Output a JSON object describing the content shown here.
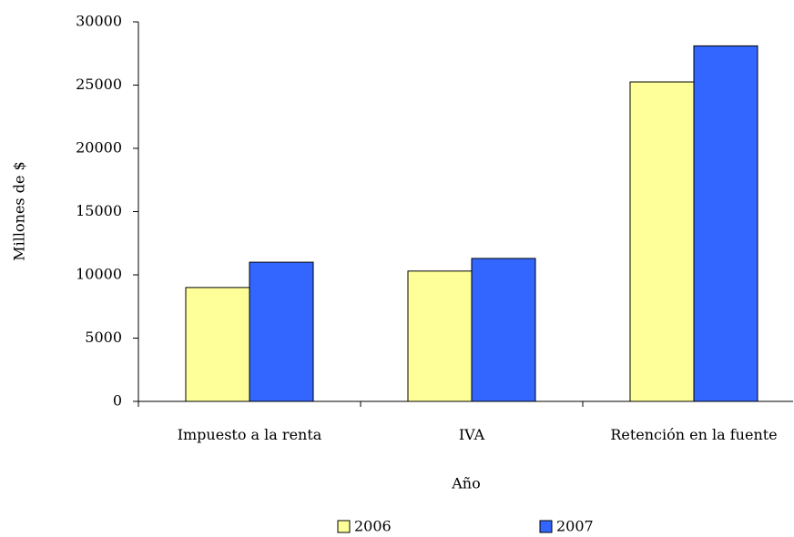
{
  "chart_data": {
    "type": "bar",
    "categories": [
      "Impuesto a la renta",
      "IVA",
      "Retención en la fuente"
    ],
    "series": [
      {
        "name": "2006",
        "color": "#ffff99",
        "values": [
          9000,
          10300,
          25250
        ]
      },
      {
        "name": "2007",
        "color": "#3366ff",
        "values": [
          11000,
          11300,
          28100
        ]
      }
    ],
    "x_label": "Año",
    "y_label": "Millones de $",
    "ylim": [
      0,
      30000
    ],
    "yticks": [
      0,
      5000,
      10000,
      15000,
      20000,
      25000,
      30000
    ],
    "legend": "bottom"
  }
}
